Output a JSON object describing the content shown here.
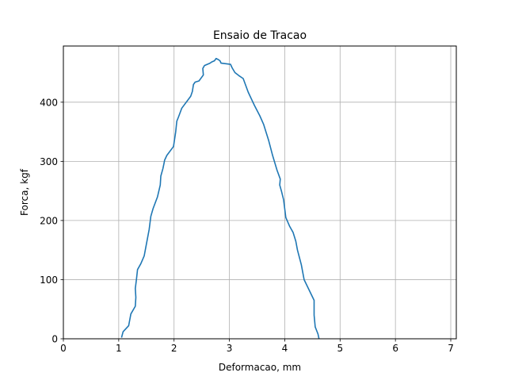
{
  "chart_data": {
    "type": "line",
    "title": "Ensaio de Tracao",
    "xlabel": "Deformacao, mm",
    "ylabel": "Forca, kgf",
    "xlim": [
      0,
      7.1
    ],
    "ylim": [
      0,
      495
    ],
    "xticks": [
      0,
      1,
      2,
      3,
      4,
      5,
      6,
      7
    ],
    "yticks": [
      0,
      100,
      200,
      300,
      400
    ],
    "grid": true,
    "line_color": "#1f77b4",
    "series": [
      {
        "x": [
          1.05,
          1.08,
          1.18,
          1.22,
          1.3,
          1.31,
          1.3,
          1.32,
          1.34,
          1.4,
          1.46,
          1.5,
          1.55,
          1.58,
          1.62,
          1.7,
          1.75,
          1.76,
          1.8,
          1.82,
          1.83,
          1.87,
          1.99,
          2.03,
          2.05,
          2.08,
          2.12,
          2.14,
          2.3,
          2.33,
          2.35,
          2.38,
          2.45,
          2.53,
          2.52,
          2.55,
          2.65,
          2.68,
          2.73,
          2.76,
          2.8,
          2.83,
          2.85,
          3.02,
          3.05,
          3.1,
          3.17,
          3.25,
          3.34,
          3.45,
          3.55,
          3.62,
          3.66,
          3.71,
          3.78,
          3.86,
          3.92,
          3.91,
          3.94,
          3.98,
          4.02,
          4.09,
          4.15,
          4.2,
          4.23,
          4.3,
          4.35,
          4.53,
          4.53,
          4.55,
          4.6,
          4.62
        ],
        "y": [
          2,
          12,
          22,
          42,
          55,
          70,
          85,
          100,
          117,
          127,
          140,
          160,
          185,
          207,
          220,
          240,
          260,
          275,
          288,
          297,
          302,
          310,
          325,
          350,
          368,
          375,
          385,
          390,
          410,
          418,
          430,
          434,
          436,
          446,
          457,
          462,
          466,
          468,
          470,
          474,
          472,
          470,
          466,
          464,
          458,
          450,
          445,
          440,
          417,
          395,
          377,
          362,
          350,
          335,
          310,
          285,
          270,
          260,
          250,
          235,
          205,
          190,
          180,
          165,
          150,
          125,
          100,
          65,
          40,
          20,
          8,
          0
        ]
      }
    ]
  }
}
